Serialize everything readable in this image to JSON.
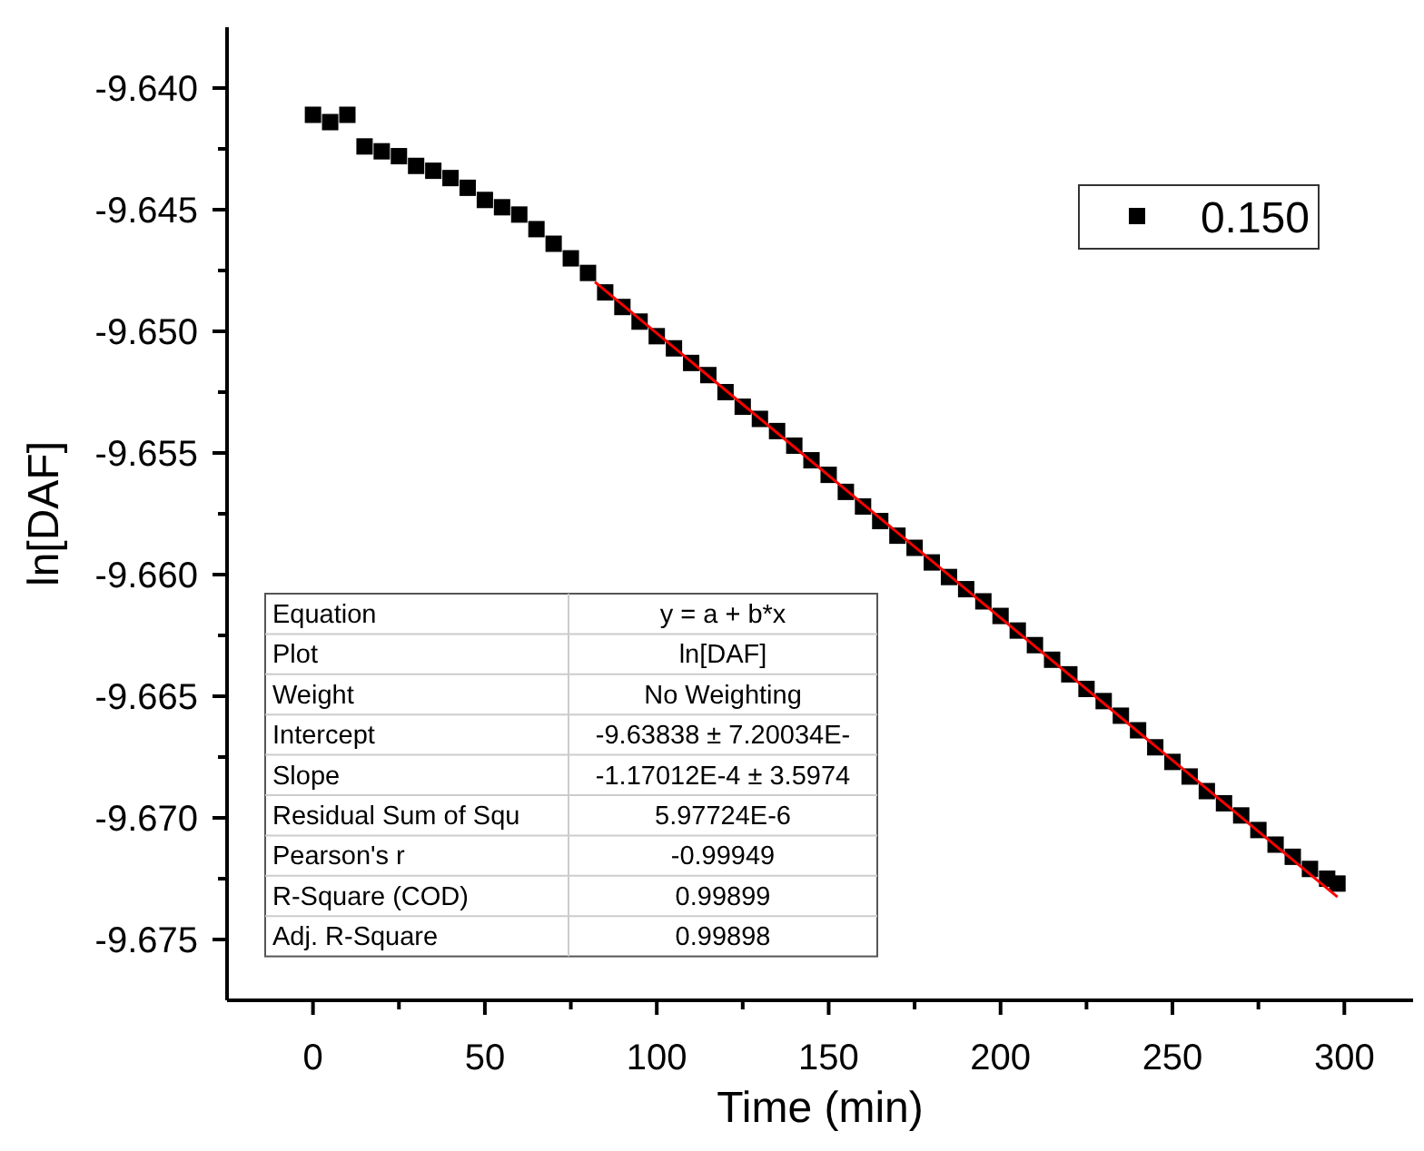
{
  "chart_data": {
    "type": "scatter",
    "xlabel": "Time (min)",
    "ylabel": "ln[DAF]",
    "xlim": [
      -25,
      320
    ],
    "ylim": [
      -9.6775,
      -9.6375
    ],
    "xticks": [
      0,
      {
        "value": 25,
        "label": null
      },
      50,
      {
        "value": 75,
        "label": null
      },
      100,
      {
        "value": 125,
        "label": null
      },
      150,
      {
        "value": 175,
        "label": null
      },
      200,
      {
        "value": 225,
        "label": null
      },
      250,
      {
        "value": 275,
        "label": null
      },
      300
    ],
    "yticks": [
      {
        "value": -9.64,
        "label": "-9.640"
      },
      {
        "value": -9.6425,
        "label": null
      },
      {
        "value": -9.645,
        "label": "-9.645"
      },
      {
        "value": -9.6475,
        "label": null
      },
      {
        "value": -9.65,
        "label": "-9.650"
      },
      {
        "value": -9.6525,
        "label": null
      },
      {
        "value": -9.655,
        "label": "-9.655"
      },
      {
        "value": -9.6575,
        "label": null
      },
      {
        "value": -9.66,
        "label": "-9.660"
      },
      {
        "value": -9.6625,
        "label": null
      },
      {
        "value": -9.665,
        "label": "-9.665"
      },
      {
        "value": -9.6675,
        "label": null
      },
      {
        "value": -9.67,
        "label": "-9.670"
      },
      {
        "value": -9.6725,
        "label": null
      },
      {
        "value": -9.675,
        "label": "-9.675"
      }
    ],
    "grid": false,
    "legend": "top right",
    "marker": "square",
    "series": [
      {
        "name": "0.150",
        "color": "#000000",
        "x": [
          0,
          5,
          10,
          15,
          20,
          25,
          30,
          35,
          40,
          45,
          50,
          55,
          60,
          65,
          70,
          75,
          80,
          85,
          90,
          95,
          100,
          105,
          110,
          115,
          120,
          125,
          130,
          135,
          140,
          145,
          150,
          155,
          160,
          165,
          170,
          175,
          180,
          185,
          190,
          195,
          200,
          205,
          210,
          215,
          220,
          225,
          230,
          235,
          240,
          245,
          250,
          255,
          260,
          265,
          270,
          275,
          280,
          285,
          290,
          295,
          298
        ],
        "values": [
          -9.6411,
          -9.6414,
          -9.6411,
          -9.6424,
          -9.6426,
          -9.6428,
          -9.6432,
          -9.6434,
          -9.6437,
          -9.6441,
          -9.6446,
          -9.6449,
          -9.6452,
          -9.6458,
          -9.6464,
          -9.647,
          -9.6476,
          -9.6484,
          -9.649,
          -9.6496,
          -9.6502,
          -9.6507,
          -9.6513,
          -9.6518,
          -9.6525,
          -9.6531,
          -9.6536,
          -9.6541,
          -9.6547,
          -9.6553,
          -9.6559,
          -9.6566,
          -9.6572,
          -9.6578,
          -9.6584,
          -9.6589,
          -9.6595,
          -9.6601,
          -9.6606,
          -9.6611,
          -9.6617,
          -9.6623,
          -9.6629,
          -9.6635,
          -9.6641,
          -9.6647,
          -9.6652,
          -9.6658,
          -9.6664,
          -9.6671,
          -9.6677,
          -9.6683,
          -9.6689,
          -9.6694,
          -9.6699,
          -9.6705,
          -9.6711,
          -9.6716,
          -9.6721,
          -9.6725,
          -9.6727
        ]
      },
      {
        "color": "#ff0000",
        "type": "line",
        "marker": "none",
        "x": [
          82,
          298
        ],
        "values": [
          -9.64797,
          -9.67325
        ]
      }
    ],
    "annotations": [
      "Equation",
      "y = a + b*x",
      "Plot",
      "ln[DAF]",
      "Weight",
      "No Weighting",
      "Intercept",
      "-9.63838 ± 7.20034E-",
      "Slope",
      "-1.17012E-4 ± 3.5974",
      "Residual Sum of Squ",
      "5.97724E-6",
      "Pearson's r",
      "-0.99949",
      "R-Square (COD)",
      "0.99899",
      "Adj. R-Square",
      "0.99898"
    ]
  }
}
